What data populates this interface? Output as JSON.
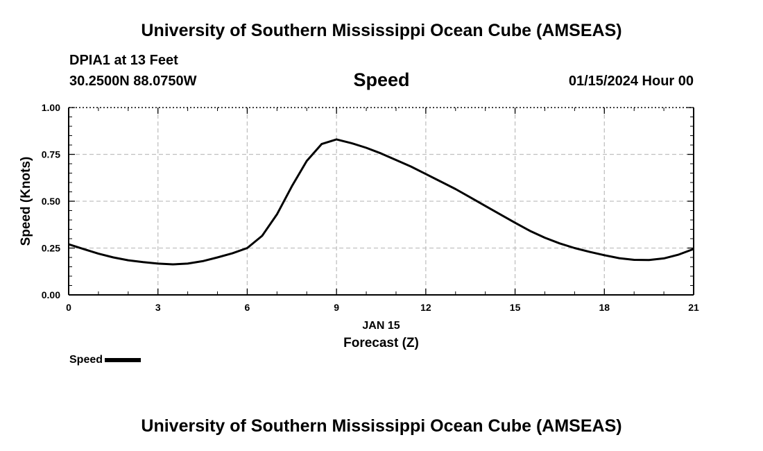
{
  "header": {
    "title": "University of Southern Mississippi Ocean Cube (AMSEAS)",
    "station": "DPIA1 at 13 Feet",
    "coordinates": "30.2500N  88.0750W",
    "datetime": "01/15/2024 Hour 00"
  },
  "footer": {
    "title": "University of Southern Mississippi Ocean Cube (AMSEAS)"
  },
  "chart_data": {
    "type": "line",
    "title": "Speed",
    "xlabel": "Forecast (Z)",
    "xlabel_date": "JAN 15",
    "ylabel": "Speed (Knots)",
    "xlim": [
      0,
      21
    ],
    "ylim": [
      0,
      1
    ],
    "xticks": [
      0,
      3,
      6,
      9,
      12,
      15,
      18,
      21
    ],
    "xtick_labels": [
      "0",
      "3",
      "6",
      "9",
      "12",
      "15",
      "18",
      "21"
    ],
    "yticks": [
      0,
      0.25,
      0.5,
      0.75,
      1.0
    ],
    "ytick_labels": [
      "0.00",
      "0.25",
      "0.50",
      "0.75",
      "1.00"
    ],
    "grid": true,
    "legend_position": "bottom-left",
    "series": [
      {
        "name": "Speed",
        "color": "#000000",
        "x": [
          0,
          0.5,
          1,
          1.5,
          2,
          2.5,
          3,
          3.5,
          4,
          4.5,
          5,
          5.5,
          6,
          6.5,
          7,
          7.5,
          8,
          8.5,
          9,
          9.5,
          10,
          10.5,
          11,
          11.5,
          12,
          12.5,
          13,
          13.5,
          14,
          14.5,
          15,
          15.5,
          16,
          16.5,
          17,
          17.5,
          18,
          18.5,
          19,
          19.5,
          20,
          20.5,
          21
        ],
        "values": [
          0.27,
          0.245,
          0.22,
          0.2,
          0.185,
          0.175,
          0.167,
          0.163,
          0.167,
          0.18,
          0.2,
          0.222,
          0.25,
          0.315,
          0.43,
          0.58,
          0.715,
          0.805,
          0.83,
          0.81,
          0.785,
          0.755,
          0.72,
          0.685,
          0.645,
          0.605,
          0.565,
          0.52,
          0.475,
          0.43,
          0.385,
          0.342,
          0.305,
          0.275,
          0.25,
          0.23,
          0.212,
          0.196,
          0.187,
          0.186,
          0.195,
          0.215,
          0.245
        ]
      }
    ]
  }
}
